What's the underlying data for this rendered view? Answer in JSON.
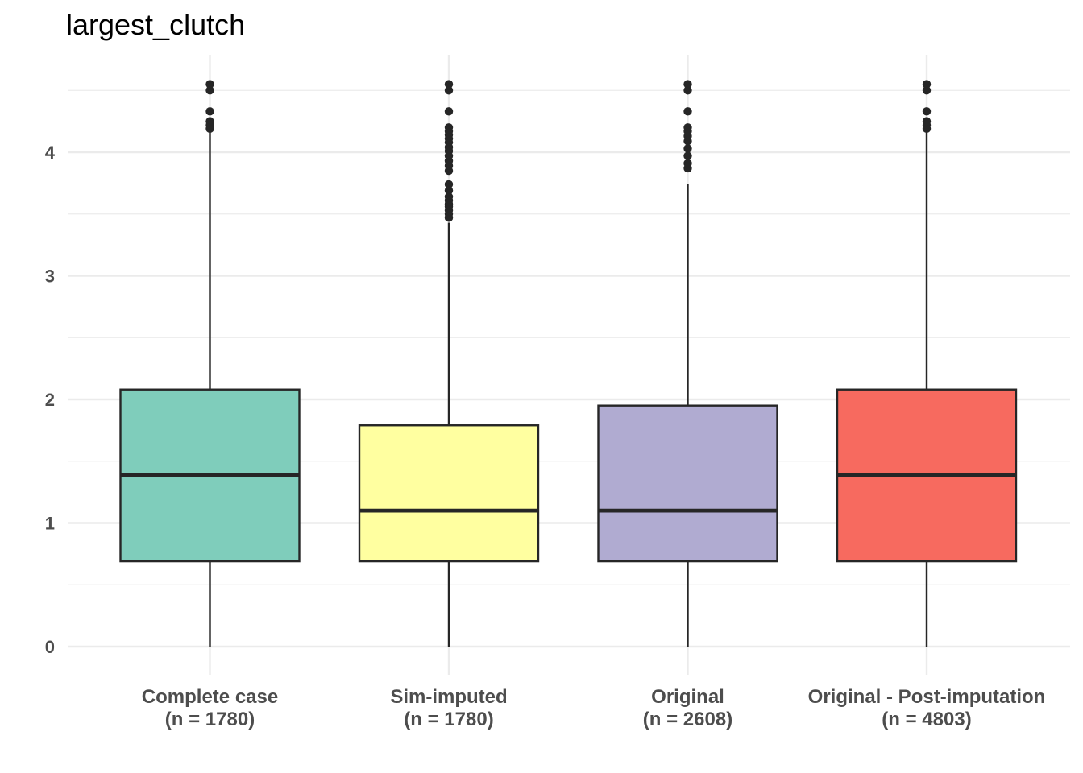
{
  "chart_data": {
    "type": "box",
    "title": "largest_clutch",
    "xlabel": "",
    "ylabel": "",
    "ylim": [
      -0.18,
      4.75
    ],
    "y_ticks": [
      0,
      1,
      2,
      3,
      4
    ],
    "grid": true,
    "categories": [
      {
        "label": "Complete case",
        "n_label": "(n = 1780)"
      },
      {
        "label": "Sim-imputed",
        "n_label": "(n = 1780)"
      },
      {
        "label": "Original",
        "n_label": "(n = 2608)"
      },
      {
        "label": "Original - Post-imputation",
        "n_label": "(n = 4803)"
      }
    ],
    "boxes": [
      {
        "min": 0,
        "q1": 0.69,
        "median": 1.39,
        "q3": 2.08,
        "whisker_high": 4.17,
        "outliers": [
          4.19,
          4.22,
          4.25,
          4.33,
          4.5,
          4.55
        ],
        "color": "#7fcdbb"
      },
      {
        "min": 0,
        "q1": 0.69,
        "median": 1.1,
        "q3": 1.79,
        "whisker_high": 3.43,
        "outliers": [
          3.47,
          3.5,
          3.53,
          3.56,
          3.58,
          3.61,
          3.64,
          3.69,
          3.74,
          3.85,
          3.89,
          3.93,
          3.97,
          4.01,
          4.04,
          4.08,
          4.11,
          4.14,
          4.17,
          4.2,
          4.33,
          4.5,
          4.55
        ],
        "color": "#ffffa0"
      },
      {
        "min": 0,
        "q1": 0.69,
        "median": 1.1,
        "q3": 1.95,
        "whisker_high": 3.74,
        "outliers": [
          3.87,
          3.91,
          3.97,
          4.03,
          4.09,
          4.13,
          4.17,
          4.2,
          4.33,
          4.5,
          4.55
        ],
        "color": "#b0abd1"
      },
      {
        "min": 0,
        "q1": 0.69,
        "median": 1.39,
        "q3": 2.08,
        "whisker_high": 4.17,
        "outliers": [
          4.19,
          4.22,
          4.25,
          4.33,
          4.5,
          4.55
        ],
        "color": "#f76a5f"
      }
    ],
    "outlier_color": "#262626",
    "line_color": "#262626",
    "grid_color": "#ebebeb"
  }
}
